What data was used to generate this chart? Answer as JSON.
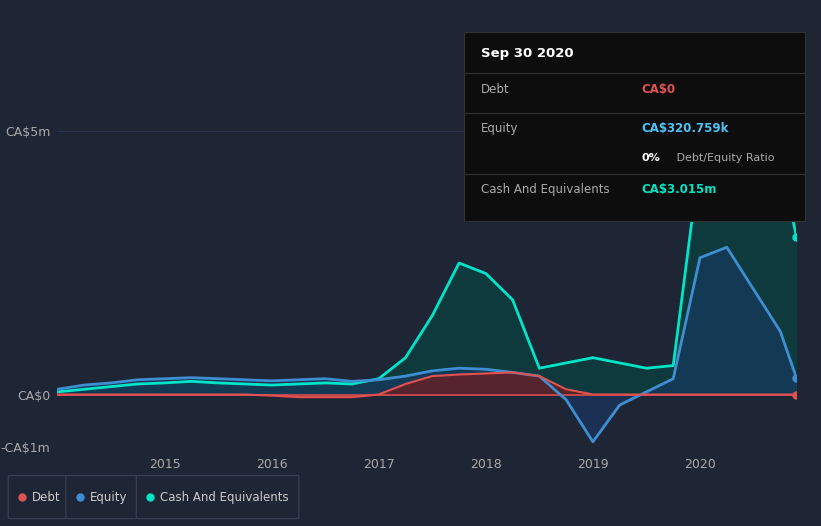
{
  "bg_color": "#1e2535",
  "plot_bg_color": "#1e2535",
  "tooltip_bg": "#0d0d0d",
  "tooltip_border": "#333333",
  "ylim": [
    -1.0,
    5.5
  ],
  "yticks": [
    -1.0,
    0.0,
    5.0
  ],
  "ytick_labels": [
    "-CA$1m",
    "CA$0",
    "CA$5m"
  ],
  "ylabel_color": "#aaaaaa",
  "xlabel_color": "#aaaaaa",
  "xtick_years": [
    2015,
    2016,
    2017,
    2018,
    2019,
    2020
  ],
  "debt_color": "#e05252",
  "equity_color": "#3d8fd1",
  "cash_color": "#00e5c8",
  "debt_fill_color": "#7a1a1a",
  "equity_fill_color": "#1a3a6a",
  "cash_fill_color": "#004d45",
  "grid_color": "#2a3050",
  "zero_line_color": "#e05252",
  "tooltip": {
    "title": "Sep 30 2020",
    "debt_label": "Debt",
    "debt_value": "CA$0",
    "debt_color": "#e05252",
    "equity_label": "Equity",
    "equity_value": "CA$320.759k",
    "equity_color": "#4fc3f7",
    "ratio_bold": "0%",
    "ratio_rest": " Debt/Equity Ratio",
    "cash_label": "Cash And Equivalents",
    "cash_value": "CA$3.015m",
    "cash_color": "#00e5c8"
  },
  "legend_items": [
    {
      "label": "Debt",
      "color": "#e05252"
    },
    {
      "label": "Equity",
      "color": "#3d8fd1"
    },
    {
      "label": "Cash And Equivalents",
      "color": "#00e5c8"
    }
  ],
  "time_points": [
    2014.0,
    2014.25,
    2014.5,
    2014.75,
    2015.0,
    2015.25,
    2015.5,
    2015.75,
    2016.0,
    2016.25,
    2016.5,
    2016.75,
    2017.0,
    2017.25,
    2017.5,
    2017.75,
    2018.0,
    2018.25,
    2018.5,
    2018.75,
    2019.0,
    2019.25,
    2019.5,
    2019.75,
    2020.0,
    2020.25,
    2020.5,
    2020.75,
    2020.9
  ],
  "debt_values": [
    0.0,
    0.0,
    0.0,
    0.0,
    0.0,
    0.0,
    0.0,
    0.0,
    -0.02,
    -0.05,
    -0.05,
    -0.05,
    0.0,
    0.2,
    0.35,
    0.38,
    0.4,
    0.42,
    0.35,
    0.1,
    0.0,
    0.0,
    0.0,
    0.0,
    0.0,
    0.0,
    0.0,
    0.0,
    0.0
  ],
  "equity_values": [
    0.1,
    0.18,
    0.22,
    0.28,
    0.3,
    0.32,
    0.3,
    0.28,
    0.26,
    0.28,
    0.3,
    0.25,
    0.28,
    0.35,
    0.45,
    0.5,
    0.48,
    0.42,
    0.35,
    -0.1,
    -0.9,
    -0.2,
    0.05,
    0.3,
    2.6,
    2.8,
    2.0,
    1.2,
    0.32
  ],
  "cash_values": [
    0.05,
    0.1,
    0.15,
    0.2,
    0.22,
    0.25,
    0.22,
    0.2,
    0.18,
    0.2,
    0.22,
    0.2,
    0.3,
    0.7,
    1.5,
    2.5,
    2.3,
    1.8,
    0.5,
    0.6,
    0.7,
    0.6,
    0.5,
    0.55,
    4.5,
    5.1,
    4.8,
    4.5,
    3.0
  ]
}
